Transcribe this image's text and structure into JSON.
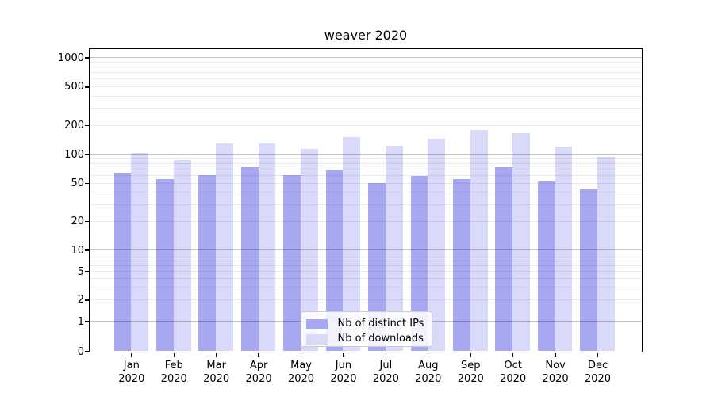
{
  "chart_data": {
    "type": "bar",
    "title": "weaver 2020",
    "categories": [
      "Jan 2020",
      "Feb 2020",
      "Mar 2020",
      "Apr 2020",
      "May 2020",
      "Jun 2020",
      "Jul 2020",
      "Aug 2020",
      "Sep 2020",
      "Oct 2020",
      "Nov 2020",
      "Dec 2020"
    ],
    "series": [
      {
        "name": "Nb of distinct IPs",
        "color": "#a8a8f2",
        "values": [
          63,
          55,
          61,
          74,
          61,
          68,
          50,
          60,
          55,
          73,
          52,
          43
        ]
      },
      {
        "name": "Nb of downloads",
        "color": "#d9d9f9",
        "values": [
          104,
          87,
          129,
          131,
          115,
          152,
          123,
          146,
          178,
          165,
          120,
          95
        ]
      }
    ],
    "xlabel": "",
    "ylabel": "",
    "yscale": "log-style (0 baseline, log decades 1-10-100-1000)",
    "ylim": [
      0,
      1200
    ],
    "yticks": [
      0,
      1,
      2,
      5,
      10,
      20,
      50,
      100,
      200,
      500,
      1000
    ],
    "grid": "horizontal major and minor gridlines",
    "legend_position": "inside axes, bottom center"
  },
  "axes": {
    "y_tick_values": [
      0,
      1,
      2,
      5,
      10,
      20,
      50,
      100,
      200,
      500,
      1000
    ],
    "y_tick_labels": [
      "0",
      "1",
      "2",
      "5",
      "10",
      "20",
      "50",
      "100",
      "200",
      "500",
      "1000"
    ],
    "x_months": [
      "Jan",
      "Feb",
      "Mar",
      "Apr",
      "May",
      "Jun",
      "Jul",
      "Aug",
      "Sep",
      "Oct",
      "Nov",
      "Dec"
    ],
    "x_year": "2020"
  },
  "colors": {
    "background": "#ffffff",
    "spine": "#000000",
    "grid_major": "rgba(0,0,0,0.24)",
    "grid_minor": "rgba(0,0,0,0.075)",
    "bar_distinct_ips": "#a8a8f2",
    "bar_downloads": "#d9d9f9",
    "legend_border": "#cccccc"
  }
}
